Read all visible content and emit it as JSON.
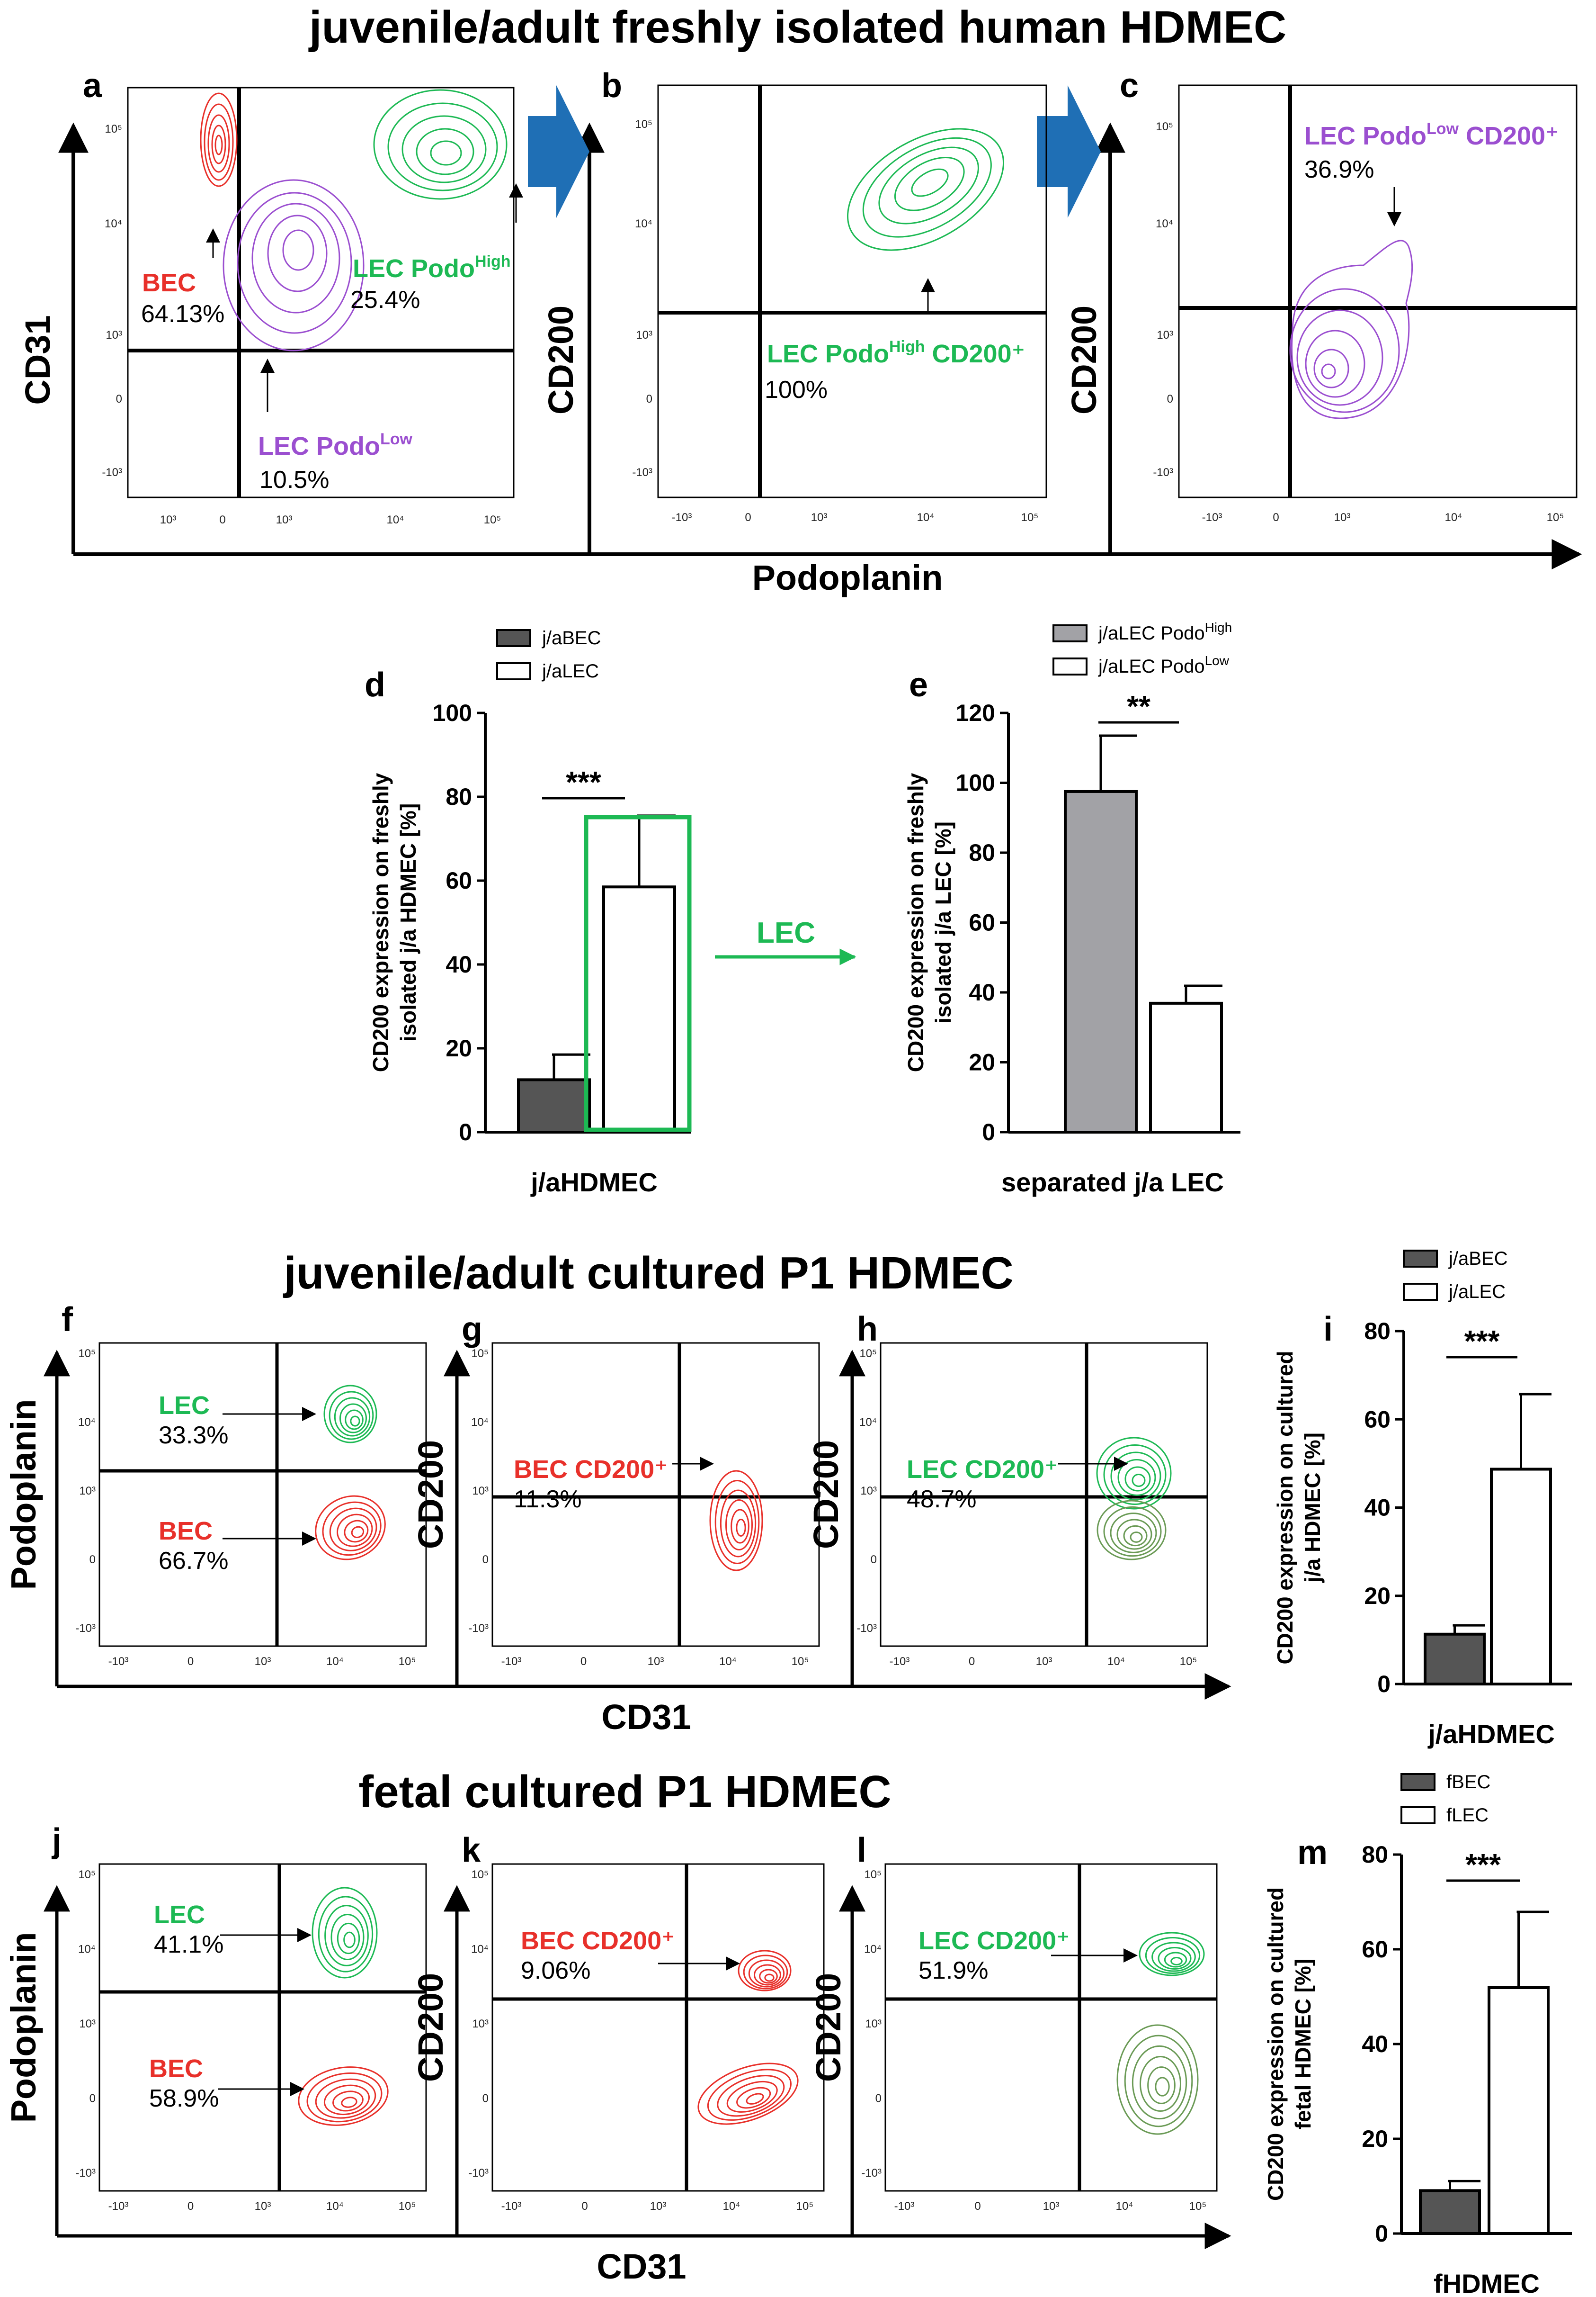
{
  "figure": {
    "title_top": "juvenile/adult freshly isolated human HDMEC",
    "title_mid": "juvenile/adult cultured P1 HDMEC",
    "title_bottom": "fetal cultured P1 HDMEC",
    "colors": {
      "green": "#1db954",
      "red": "#e8302a",
      "purple": "#9b4fd0",
      "blue_arrow": "#1f6fb5",
      "dark_bar": "#555555",
      "grey_bar": "#a2a2a6"
    },
    "row1": {
      "x_axis_label": "Podoplanin",
      "panels": [
        {
          "letter": "a",
          "y_label": "CD31",
          "y_ticks": [
            "10⁵",
            "10⁴",
            "10³",
            "0",
            "-10³"
          ],
          "x_ticks": [
            "10³",
            "0",
            "10³",
            "10⁴",
            "10⁵"
          ],
          "labels": [
            {
              "name": "BEC",
              "value": "64.13%"
            },
            {
              "name": "LEC Podo",
              "sup": "High",
              "value": "25.4%"
            },
            {
              "name": "LEC Podo",
              "sup": "Low",
              "value": "10.5%"
            }
          ]
        },
        {
          "letter": "b",
          "y_label": "CD200",
          "y_ticks": [
            "10⁵",
            "10⁴",
            "10³",
            "0",
            "-10³"
          ],
          "x_ticks": [
            "-10³",
            "0",
            "10³",
            "10⁴",
            "10⁵"
          ],
          "labels": [
            {
              "name": "LEC Podo",
              "sup": "High",
              "tail": " CD200⁺",
              "value": "100%"
            }
          ]
        },
        {
          "letter": "c",
          "y_label": "CD200",
          "y_ticks": [
            "10⁵",
            "10⁴",
            "10³",
            "0",
            "-10³"
          ],
          "x_ticks": [
            "-10³",
            "0",
            "10³",
            "10⁴",
            "10⁵"
          ],
          "labels": [
            {
              "name": "LEC Podo",
              "sup": "Low",
              "tail": " CD200⁺",
              "value": "36.9%"
            }
          ]
        }
      ]
    },
    "row3": {
      "x_axis_label": "CD31",
      "panels": [
        {
          "letter": "f",
          "y_label": "Podoplanin",
          "labels": [
            {
              "name": "LEC",
              "value": "33.3%"
            },
            {
              "name": "BEC",
              "value": "66.7%"
            }
          ]
        },
        {
          "letter": "g",
          "y_label": "CD200",
          "labels": [
            {
              "name": "BEC CD200⁺",
              "value": "11.3%"
            }
          ]
        },
        {
          "letter": "h",
          "y_label": "CD200",
          "labels": [
            {
              "name": "LEC CD200⁺",
              "value": "48.7%"
            }
          ]
        }
      ],
      "ticks_y": [
        "10⁵",
        "10⁴",
        "10³",
        "0",
        "-10³"
      ],
      "ticks_x": [
        "-10³",
        "0",
        "10³",
        "10⁴",
        "10⁵"
      ]
    },
    "row4": {
      "x_axis_label": "CD31",
      "panels": [
        {
          "letter": "j",
          "y_label": "Podoplanin",
          "labels": [
            {
              "name": "LEC",
              "value": "41.1%"
            },
            {
              "name": "BEC",
              "value": "58.9%"
            }
          ]
        },
        {
          "letter": "k",
          "y_label": "CD200",
          "labels": [
            {
              "name": "BEC CD200⁺",
              "value": "9.06%"
            }
          ]
        },
        {
          "letter": "l",
          "y_label": "CD200",
          "labels": [
            {
              "name": "LEC CD200⁺",
              "value": "51.9%"
            }
          ]
        }
      ],
      "ticks_y": [
        "10⁵",
        "10⁴",
        "10³",
        "0",
        "-10³"
      ],
      "ticks_x": [
        "-10³",
        "0",
        "10³",
        "10⁴",
        "10⁵"
      ]
    },
    "lec_arrow_label": "LEC"
  },
  "chart_data": [
    {
      "panel": "d",
      "type": "bar",
      "categories": [
        "j/aHDMEC"
      ],
      "series": [
        {
          "name": "j/aBEC",
          "values": [
            12.5
          ],
          "error": [
            6
          ]
        },
        {
          "name": "j/aLEC",
          "values": [
            58.5
          ],
          "error": [
            17
          ]
        }
      ],
      "ylabel": "CD200 expression on freshly isolated j/a  HDMEC [%]",
      "xlabel": "j/aHDMEC",
      "ylim": [
        0,
        100
      ],
      "yticks": [
        0,
        20,
        40,
        60,
        80,
        100
      ],
      "significance": "***"
    },
    {
      "panel": "e",
      "type": "bar",
      "categories": [
        "separated j/a LEC"
      ],
      "series": [
        {
          "name": "j/aLEC Podo",
          "sup": "High",
          "values": [
            97.5
          ],
          "error": [
            16
          ]
        },
        {
          "name": "j/aLEC Podo",
          "sup": "Low",
          "values": [
            36.9
          ],
          "error": [
            5
          ]
        }
      ],
      "ylabel": "CD200 expression on freshly isolated j/a LEC [%]",
      "xlabel": "separated j/a LEC",
      "ylim": [
        0,
        120
      ],
      "yticks": [
        0,
        20,
        40,
        60,
        80,
        100,
        120
      ],
      "significance": "**"
    },
    {
      "panel": "i",
      "type": "bar",
      "categories": [
        "j/aHDMEC"
      ],
      "series": [
        {
          "name": "j/aBEC",
          "values": [
            11.3
          ],
          "error": [
            2
          ]
        },
        {
          "name": "j/aLEC",
          "values": [
            48.7
          ],
          "error": [
            17
          ]
        }
      ],
      "ylabel": "CD200 expression on cultured j/a HDMEC [%]",
      "xlabel": "j/aHDMEC",
      "ylim": [
        0,
        80
      ],
      "yticks": [
        0,
        20,
        40,
        60,
        80
      ],
      "significance": "***"
    },
    {
      "panel": "m",
      "type": "bar",
      "categories": [
        "fHDMEC"
      ],
      "series": [
        {
          "name": "fBEC",
          "values": [
            9.06
          ],
          "error": [
            2
          ]
        },
        {
          "name": "fLEC",
          "values": [
            51.9
          ],
          "error": [
            16
          ]
        }
      ],
      "ylabel": "CD200 expression on cultured fetal HDMEC [%]",
      "xlabel": "fHDMEC",
      "ylim": [
        0,
        80
      ],
      "yticks": [
        0,
        20,
        40,
        60,
        80
      ],
      "significance": "***"
    }
  ]
}
